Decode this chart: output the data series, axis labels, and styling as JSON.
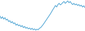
{
  "values": [
    -1.0,
    -1.8,
    -1.2,
    -2.0,
    -1.5,
    -2.3,
    -2.0,
    -2.8,
    -2.5,
    -3.2,
    -2.8,
    -3.5,
    -3.2,
    -4.0,
    -3.6,
    -4.2,
    -3.9,
    -4.5,
    -4.1,
    -4.8,
    -4.4,
    -5.0,
    -4.7,
    -5.2,
    -4.9,
    -5.4,
    -5.0,
    -5.5,
    -5.2,
    -5.6,
    -5.3,
    -5.5,
    -5.0,
    -4.8,
    -4.3,
    -3.8,
    -3.2,
    -2.6,
    -2.0,
    -1.4,
    -0.8,
    -0.2,
    0.5,
    1.2,
    1.8,
    2.5,
    2.0,
    2.8,
    3.2,
    2.7,
    3.0,
    3.5,
    3.8,
    3.2,
    3.6,
    4.0,
    3.4,
    3.8,
    3.2,
    2.8,
    3.2,
    2.7,
    3.0,
    2.5,
    2.8,
    2.3,
    2.6,
    2.0,
    2.4,
    1.8
  ],
  "line_color": "#4ba3d3",
  "background_color": "#ffffff",
  "linewidth": 0.7
}
